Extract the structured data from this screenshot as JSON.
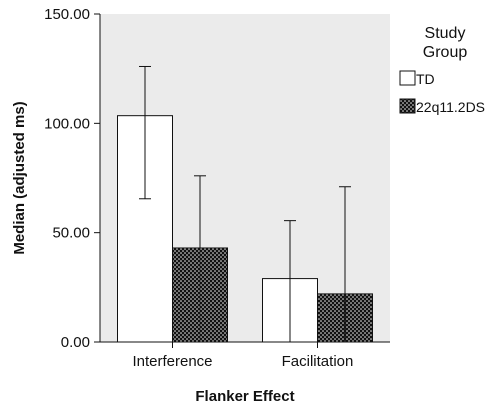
{
  "chart_data": {
    "type": "bar",
    "categories": [
      "Interference",
      "Facilitation"
    ],
    "series": [
      {
        "name": "TD",
        "values": [
          103.5,
          29.0
        ],
        "error_low": [
          65.5,
          0
        ],
        "error_high": [
          126.0,
          55.5
        ]
      },
      {
        "name": "22q11.2DS",
        "values": [
          43.0,
          22.0
        ],
        "error_low": [
          0,
          0
        ],
        "error_high": [
          76.0,
          71.0
        ]
      }
    ],
    "title": "",
    "xlabel": "Flanker Effect",
    "ylabel": "Median (adjusted ms)",
    "ylim": [
      0,
      150
    ],
    "yticks": [
      "0.00",
      "50.00",
      "100.00",
      "150.00"
    ],
    "legend_title_lines": [
      "Study",
      "Group"
    ],
    "legend_position": "top-right",
    "grid": false,
    "colors": {
      "plot_bg": "#ebebeb",
      "td_fill": "#ffffff",
      "ds_fill": "#111111",
      "ds_dots": "#ffffff",
      "stroke": "#111111"
    }
  }
}
